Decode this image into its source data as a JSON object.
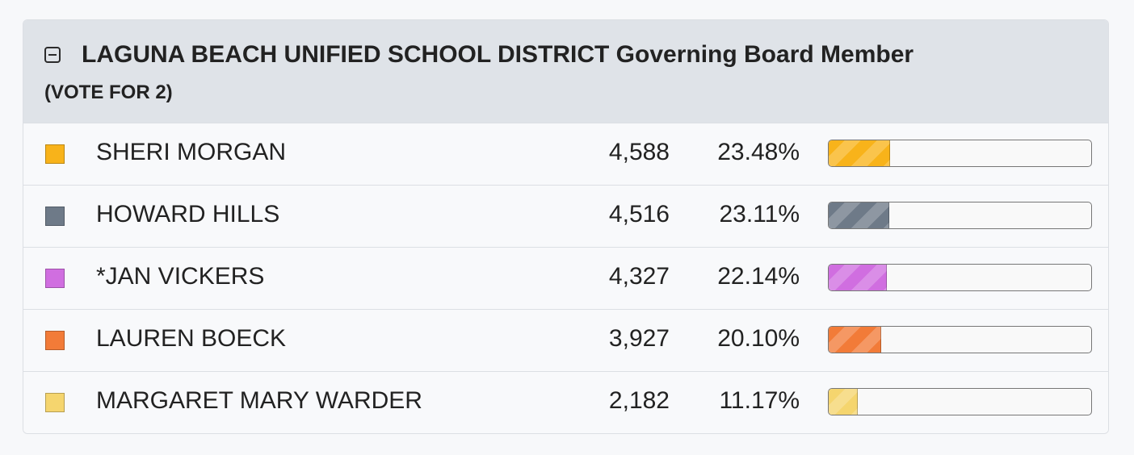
{
  "contest": {
    "title": "LAGUNA BEACH UNIFIED SCHOOL DISTRICT Governing Board Member",
    "vote_for": "(VOTE FOR 2)",
    "collapse_icon": "minus-square-icon"
  },
  "candidates": [
    {
      "name": "SHERI MORGAN",
      "votes": "4,588",
      "percent": "23.48%",
      "share": 23.48,
      "color": "#f8b31a"
    },
    {
      "name": "HOWARD HILLS",
      "votes": "4,516",
      "percent": "23.11%",
      "share": 23.11,
      "color": "#6e7a88"
    },
    {
      "name": "*JAN VICKERS",
      "votes": "4,327",
      "percent": "22.14%",
      "share": 22.14,
      "color": "#d06ee0"
    },
    {
      "name": "LAUREN BOECK",
      "votes": "3,927",
      "percent": "20.10%",
      "share": 20.1,
      "color": "#f27b38"
    },
    {
      "name": "MARGARET MARY WARDER",
      "votes": "2,182",
      "percent": "11.17%",
      "share": 11.17,
      "color": "#f5d56e"
    }
  ]
}
